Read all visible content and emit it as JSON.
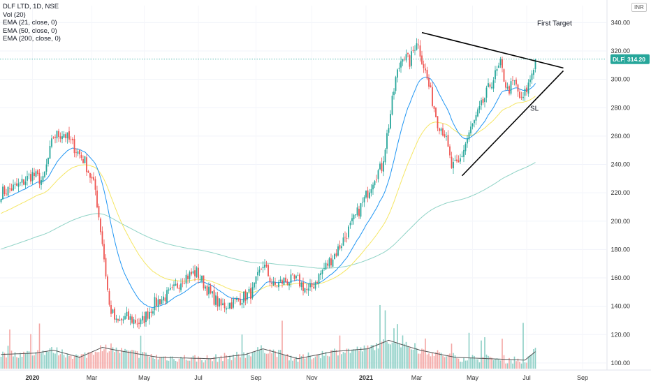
{
  "legend": {
    "symbol": "DLF LTD, 1D, NSE",
    "volume": "Vol (20)",
    "ema21": "EMA (21, close, 0)",
    "ema50": "EMA (50, close, 0)",
    "ema200": "EMA (200, close, 0)"
  },
  "currency": "INR",
  "price_label": {
    "ticker": "DLF",
    "value": "314.20"
  },
  "colors": {
    "up": "#26a69a",
    "down": "#ef5350",
    "ema21": "#2196f3",
    "ema50": "#f5e663",
    "ema200": "#8fd3c6",
    "vol_up": "#8ccfc5",
    "vol_down": "#f3a6a4",
    "vol_ma": "#555555",
    "trendline": "#000000",
    "badge": "#26a69a"
  },
  "chart_data": {
    "type": "candlestick",
    "ylim": [
      96,
      352
    ],
    "y_ticks": [
      100,
      120,
      140,
      160,
      180,
      200,
      220,
      240,
      260,
      280,
      300,
      320,
      340
    ],
    "x_ticks": [
      {
        "label": "2020",
        "bold": true
      },
      {
        "label": "Mar",
        "bold": false
      },
      {
        "label": "May",
        "bold": false
      },
      {
        "label": "Jul",
        "bold": false
      },
      {
        "label": "Sep",
        "bold": false
      },
      {
        "label": "Nov",
        "bold": false
      },
      {
        "label": "2021",
        "bold": true
      },
      {
        "label": "Mar",
        "bold": false
      },
      {
        "label": "May",
        "bold": false
      },
      {
        "label": "Jul",
        "bold": false
      },
      {
        "label": "Sep",
        "bold": false
      }
    ],
    "last_price": 314.2,
    "price_path": [
      [
        0,
        220
      ],
      [
        10,
        225
      ],
      [
        18,
        233
      ],
      [
        24,
        228
      ],
      [
        30,
        260
      ],
      [
        36,
        262
      ],
      [
        42,
        252
      ],
      [
        48,
        242
      ],
      [
        54,
        222
      ],
      [
        58,
        185
      ],
      [
        62,
        140
      ],
      [
        66,
        128
      ],
      [
        72,
        132
      ],
      [
        80,
        128
      ],
      [
        88,
        142
      ],
      [
        98,
        150
      ],
      [
        104,
        160
      ],
      [
        112,
        164
      ],
      [
        120,
        148
      ],
      [
        126,
        140
      ],
      [
        134,
        143
      ],
      [
        144,
        150
      ],
      [
        150,
        170
      ],
      [
        156,
        154
      ],
      [
        162,
        158
      ],
      [
        170,
        158
      ],
      [
        176,
        150
      ],
      [
        184,
        165
      ],
      [
        192,
        178
      ],
      [
        200,
        196
      ],
      [
        208,
        215
      ],
      [
        214,
        232
      ],
      [
        218,
        238
      ],
      [
        222,
        268
      ],
      [
        226,
        300
      ],
      [
        230,
        318
      ],
      [
        234,
        312
      ],
      [
        238,
        328
      ],
      [
        242,
        310
      ],
      [
        246,
        290
      ],
      [
        250,
        270
      ],
      [
        254,
        262
      ],
      [
        258,
        238
      ],
      [
        262,
        240
      ],
      [
        268,
        262
      ],
      [
        274,
        278
      ],
      [
        280,
        296
      ],
      [
        286,
        310
      ],
      [
        290,
        292
      ],
      [
        294,
        298
      ],
      [
        298,
        284
      ],
      [
        302,
        296
      ],
      [
        306,
        314
      ]
    ],
    "volume_path": [
      [
        0,
        106
      ],
      [
        20,
        107
      ],
      [
        30,
        109
      ],
      [
        45,
        104
      ],
      [
        58,
        111
      ],
      [
        66,
        109
      ],
      [
        90,
        104
      ],
      [
        120,
        103
      ],
      [
        140,
        106
      ],
      [
        150,
        110
      ],
      [
        170,
        103
      ],
      [
        190,
        108
      ],
      [
        210,
        110
      ],
      [
        222,
        116
      ],
      [
        232,
        112
      ],
      [
        240,
        109
      ],
      [
        260,
        104
      ],
      [
        280,
        103
      ],
      [
        300,
        102
      ],
      [
        306,
        108
      ]
    ],
    "annotations": [
      {
        "text": "First Target",
        "x": 307,
        "y": 340
      },
      {
        "text": "SL",
        "x": 303,
        "y": 280
      }
    ],
    "trendlines": [
      {
        "name": "upper",
        "from": [
          241,
          333
        ],
        "to": [
          322,
          308
        ]
      },
      {
        "name": "lower",
        "from": [
          264,
          232
        ],
        "to": [
          322,
          306
        ]
      }
    ]
  }
}
